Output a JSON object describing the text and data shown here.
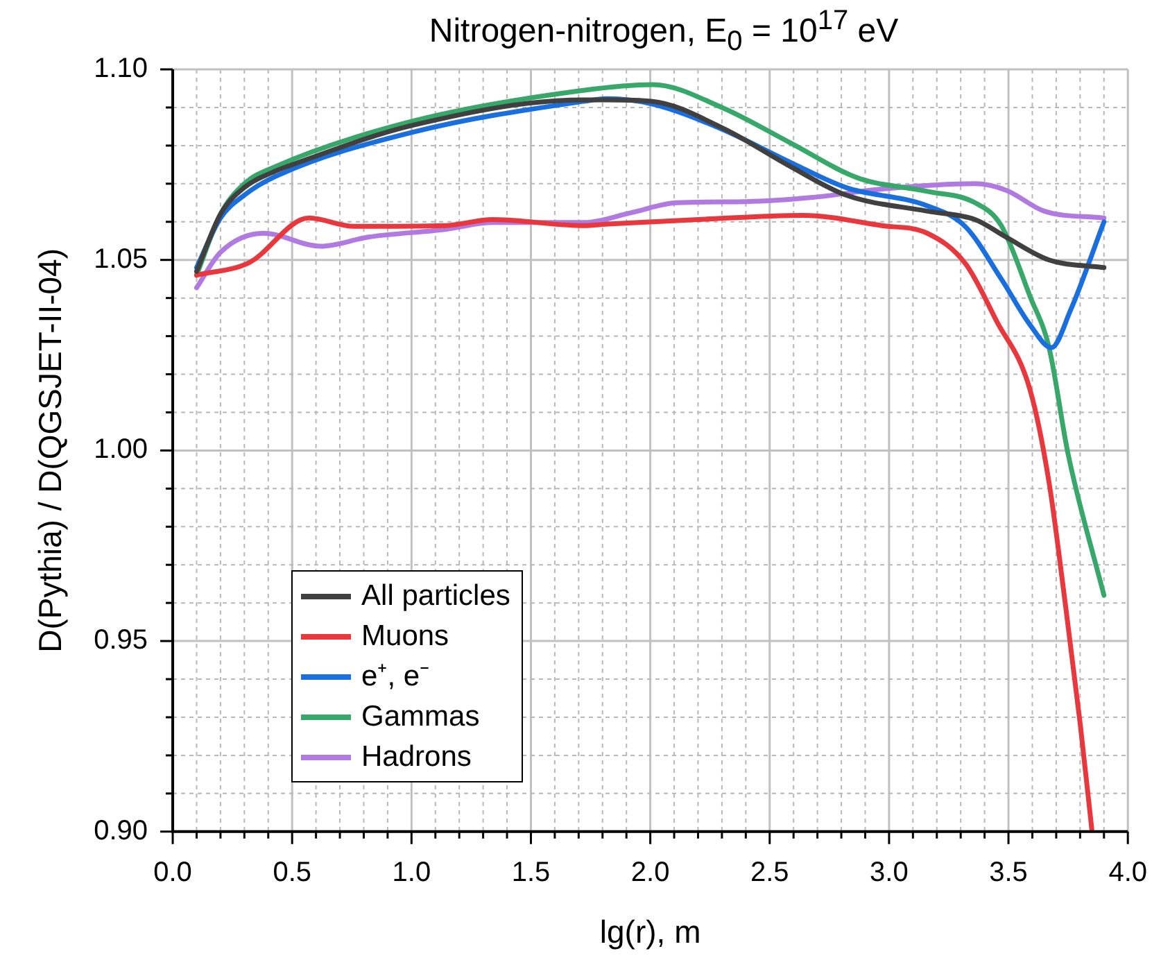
{
  "chart_data": {
    "type": "line",
    "title": "Nitrogen-nitrogen, E$_{0}$ = 10$^{17}$ eV",
    "xlabel": "lg(r), m",
    "ylabel": "D(Pythia) / D(QGSJET-II-04)",
    "xlim": [
      0,
      4
    ],
    "ylim": [
      0.9,
      1.1
    ],
    "xticks": [
      {
        "value": 0,
        "label": "0.0"
      },
      {
        "value": 0.1,
        "label": null
      },
      {
        "value": 0.2,
        "label": null
      },
      {
        "value": 0.3,
        "label": null
      },
      {
        "value": 0.4,
        "label": null
      },
      {
        "value": 0.5,
        "label": "0.5"
      },
      {
        "value": 0.6,
        "label": null
      },
      {
        "value": 0.7,
        "label": null
      },
      {
        "value": 0.8,
        "label": null
      },
      {
        "value": 0.9,
        "label": null
      },
      {
        "value": 1,
        "label": "1.0"
      },
      {
        "value": 1.1,
        "label": null
      },
      {
        "value": 1.2,
        "label": null
      },
      {
        "value": 1.3,
        "label": null
      },
      {
        "value": 1.4,
        "label": null
      },
      {
        "value": 1.5,
        "label": "1.5"
      },
      {
        "value": 1.6,
        "label": null
      },
      {
        "value": 1.7,
        "label": null
      },
      {
        "value": 1.8,
        "label": null
      },
      {
        "value": 1.9,
        "label": null
      },
      {
        "value": 2,
        "label": "2.0"
      },
      {
        "value": 2.1,
        "label": null
      },
      {
        "value": 2.2,
        "label": null
      },
      {
        "value": 2.3,
        "label": null
      },
      {
        "value": 2.4,
        "label": null
      },
      {
        "value": 2.5,
        "label": "2.5"
      },
      {
        "value": 2.6,
        "label": null
      },
      {
        "value": 2.7,
        "label": null
      },
      {
        "value": 2.8,
        "label": null
      },
      {
        "value": 2.9,
        "label": null
      },
      {
        "value": 3,
        "label": "3.0"
      },
      {
        "value": 3.1,
        "label": null
      },
      {
        "value": 3.2,
        "label": null
      },
      {
        "value": 3.3,
        "label": null
      },
      {
        "value": 3.4,
        "label": null
      },
      {
        "value": 3.5,
        "label": "3.5"
      },
      {
        "value": 3.6,
        "label": null
      },
      {
        "value": 3.7,
        "label": null
      },
      {
        "value": 3.8,
        "label": null
      },
      {
        "value": 3.9,
        "label": null
      },
      {
        "value": 4,
        "label": "4.0"
      }
    ],
    "yticks": [
      {
        "value": 0.9,
        "label": "0.90"
      },
      {
        "value": 0.91,
        "label": null
      },
      {
        "value": 0.92,
        "label": null
      },
      {
        "value": 0.93,
        "label": null
      },
      {
        "value": 0.94,
        "label": null
      },
      {
        "value": 0.95,
        "label": "0.95"
      },
      {
        "value": 0.96,
        "label": null
      },
      {
        "value": 0.97,
        "label": null
      },
      {
        "value": 0.98,
        "label": null
      },
      {
        "value": 0.99,
        "label": null
      },
      {
        "value": 1,
        "label": "1.00"
      },
      {
        "value": 1.01,
        "label": null
      },
      {
        "value": 1.02,
        "label": null
      },
      {
        "value": 1.03,
        "label": null
      },
      {
        "value": 1.04,
        "label": null
      },
      {
        "value": 1.05,
        "label": "1.05"
      },
      {
        "value": 1.06,
        "label": null
      },
      {
        "value": 1.07,
        "label": null
      },
      {
        "value": 1.08,
        "label": null
      },
      {
        "value": 1.09,
        "label": null
      },
      {
        "value": 1.1,
        "label": "1.10"
      }
    ],
    "grid": true,
    "legend": "bottom left",
    "marker": "none",
    "line_style": "solid",
    "series": [
      {
        "name": "All particles",
        "color": "#404040",
        "x": [
          0.1,
          0.2,
          0.3,
          0.43,
          0.5,
          1.01,
          1.72,
          1.82,
          2.01,
          2.3,
          2.59,
          2.82,
          3.16,
          3.36,
          3.49,
          3.67,
          3.9
        ],
        "values": [
          1.047,
          1.062,
          1.069,
          1.0733,
          1.075,
          1.0854,
          1.092,
          1.092,
          1.0916,
          1.0847,
          1.0744,
          1.067,
          1.0628,
          1.0606,
          1.056,
          1.05,
          1.048
        ]
      },
      {
        "name": "Muons",
        "color": "#e8383d",
        "x": [
          0.1,
          0.32,
          0.57,
          0.76,
          1.14,
          1.34,
          1.72,
          1.82,
          2.2,
          2.64,
          2.97,
          3.16,
          3.32,
          3.45,
          3.59,
          3.67,
          3.74,
          3.8,
          3.85
        ],
        "values": [
          1.046,
          1.0493,
          1.061,
          1.0588,
          1.059,
          1.0606,
          1.059,
          1.0594,
          1.0606,
          1.0617,
          1.059,
          1.057,
          1.049,
          1.034,
          1.016,
          0.9916,
          0.9588,
          0.9285,
          0.9
        ]
      },
      {
        "name": "e⁺, e⁻",
        "color": "#1a6fdf",
        "x": [
          0.1,
          0.2,
          0.3,
          0.43,
          1.01,
          1.72,
          1.82,
          2.01,
          2.3,
          2.59,
          2.82,
          3.16,
          3.32,
          3.47,
          3.59,
          3.68,
          3.76,
          3.9
        ],
        "values": [
          1.048,
          1.061,
          1.067,
          1.0719,
          1.0836,
          1.0916,
          1.0923,
          1.0909,
          1.0843,
          1.0755,
          1.069,
          1.0642,
          1.0587,
          1.045,
          1.033,
          1.027,
          1.0368,
          1.06
        ]
      },
      {
        "name": "Gammas",
        "color": "#37a86a",
        "x": [
          0.1,
          0.2,
          0.3,
          0.43,
          1.01,
          1.72,
          2.01,
          2.3,
          2.59,
          2.87,
          3.16,
          3.36,
          3.47,
          3.59,
          3.67,
          3.75,
          3.9
        ],
        "values": [
          1.046,
          1.062,
          1.07,
          1.0745,
          1.0865,
          1.0945,
          1.096,
          1.09,
          1.0806,
          1.0715,
          1.068,
          1.065,
          1.059,
          1.0405,
          1.027,
          0.999,
          0.962
        ]
      },
      {
        "name": "Hadrons",
        "color": "#b07ae0",
        "x": [
          0.1,
          0.2,
          0.38,
          0.62,
          0.82,
          1.14,
          1.34,
          1.72,
          1.92,
          2.11,
          2.4,
          2.68,
          2.97,
          3.36,
          3.49,
          3.65,
          3.9
        ],
        "values": [
          1.0427,
          1.052,
          1.057,
          1.0536,
          1.056,
          1.058,
          1.0598,
          1.0598,
          1.0624,
          1.065,
          1.0653,
          1.0664,
          1.0686,
          1.07,
          1.0683,
          1.0628,
          1.061
        ]
      }
    ]
  }
}
